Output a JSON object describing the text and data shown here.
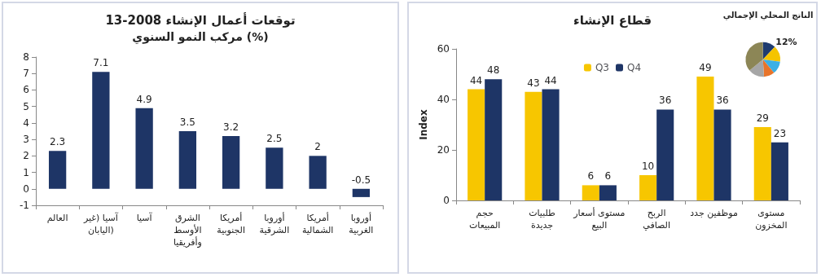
{
  "chart_data": [
    {
      "type": "bar",
      "title": "توقعات أعمال الإنشاء 2008-13",
      "subtitle": "مركب النمو السنوي (%)",
      "categories": [
        "العالم",
        "آسيا (غير اليابان)",
        "آسيا",
        "الشرق الأوسط وأفريقيا",
        "أمريكا الجنوبية",
        "أوروبا الشرقية",
        "أمريكا الشمالية",
        "أوروبا الغربية"
      ],
      "values": [
        2.3,
        7.1,
        4.9,
        3.5,
        3.2,
        2.5,
        2,
        -0.5
      ],
      "color": "#1e3566",
      "ylim": [
        -1,
        8
      ],
      "yticks": [
        -1,
        0,
        1,
        2,
        3,
        4,
        5,
        6,
        7,
        8
      ],
      "grid": false,
      "data_labels": true
    },
    {
      "type": "bar",
      "title": "قطاع الإنشاء",
      "ylabel": "Index",
      "categories": [
        "حجم المبيعات",
        "طلبيات جديدة",
        "مستوى أسعار البيع",
        "الربح الصافي",
        "موظفين جدد",
        "مستوى المخزون"
      ],
      "series": [
        {
          "name": "Q3",
          "color": "#f7c600",
          "values": [
            44,
            43,
            6,
            10,
            49,
            29
          ]
        },
        {
          "name": "Q4",
          "color": "#1e3566",
          "values": [
            48,
            44,
            6,
            36,
            36,
            23
          ]
        }
      ],
      "ylim": [
        0,
        60
      ],
      "yticks": [
        0,
        20,
        40,
        60
      ],
      "grid": false,
      "legend": "top",
      "data_labels": true
    },
    {
      "type": "pie",
      "title": "الناتج المحلي الإجمالي",
      "categories": [
        null,
        null,
        null,
        null,
        null,
        null
      ],
      "values": [
        12,
        15,
        12,
        10,
        15,
        36
      ],
      "colors": [
        "#1f3c70",
        "#f5c400",
        "#3bb0e6",
        "#e8742a",
        "#a6a6a6",
        "#8c8656"
      ],
      "value_labels": [
        "12%",
        null,
        null,
        null,
        null,
        null
      ],
      "legend": false
    }
  ]
}
